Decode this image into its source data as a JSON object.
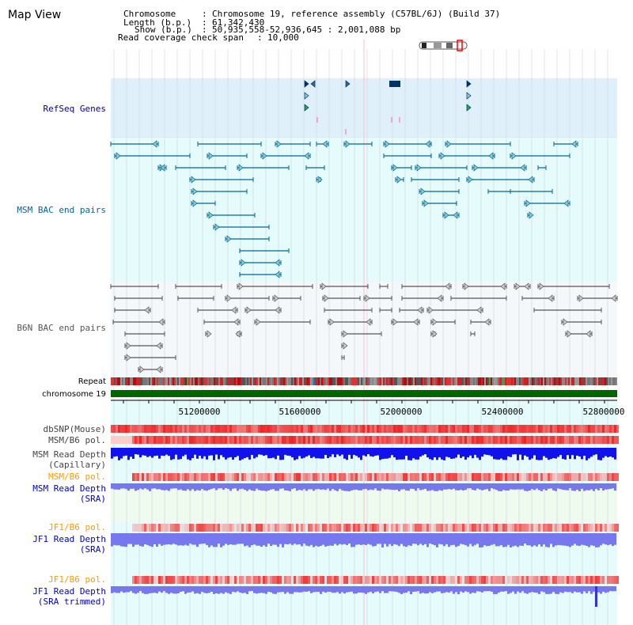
{
  "title": "Map View",
  "info": {
    "chromosome_label": "Chromosome",
    "chromosome_value": "Chromosome 19, reference assembly (C57BL/6J) (Build 37)",
    "length_label": "Length (b.p.)",
    "length_value": "61,342,430",
    "show_label": "Show (b.p.)",
    "show_value": "50,935,558-52,936,645 : 2,001,088 bp",
    "coverage_label": "Read coverage check span",
    "coverage_value": "10,000"
  },
  "tracks": {
    "refseq": "RefSeq Genes",
    "msm_bac": "MSM BAC end pairs",
    "b6n_bac": "B6N BAC end pairs",
    "repeat": "Repeat",
    "chromosome": "chromosome 19",
    "dbsnp": "dbSNP(Mouse)",
    "msm_b6_pol_1": "MSM/B6 pol.",
    "msm_read_depth_cap_1": "MSM Read Depth",
    "msm_read_depth_cap_2": "(Capillary)",
    "msm_b6_pol_2": "MSM/B6 pol.",
    "msm_read_depth_sra_1": "MSM Read Depth",
    "msm_read_depth_sra_2": "(SRA)",
    "jf1_b6_pol_1": "JF1/B6 pol.",
    "jf1_read_depth_sra_1": "JF1 Read Depth",
    "jf1_read_depth_sra_2": "(SRA)",
    "jf1_b6_pol_2": "JF1/B6 pol.",
    "jf1_read_depth_trim_1": "JF1 Read Depth",
    "jf1_read_depth_trim_2": "(SRA trimmed)"
  },
  "axis_ticks": [
    "51200000",
    "51600000",
    "52000000",
    "52400000",
    "52800000"
  ],
  "colors": {
    "refseq_label": "#000099",
    "msm_label": "#006699",
    "b6n_label": "#555555",
    "orange_label": "#FF9900",
    "blue_label": "#0000CC",
    "chromosome_bar": "#006600",
    "depth_blue": "#1111EE",
    "depth_light": "#7777EE",
    "pol_red": "#EE2222"
  }
}
